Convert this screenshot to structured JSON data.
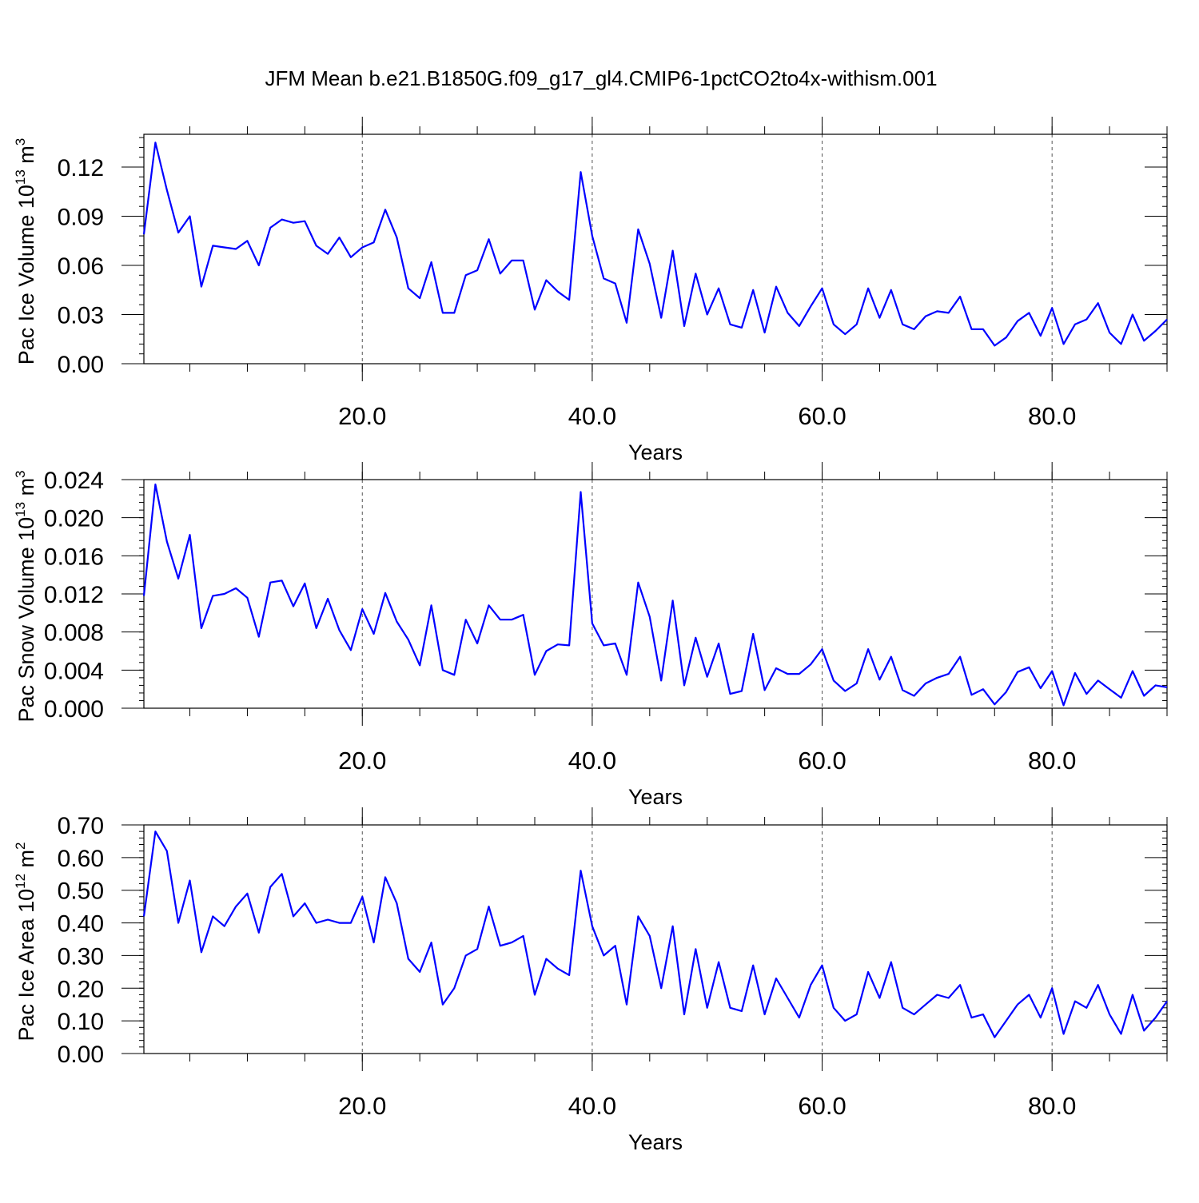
{
  "title": "JFM Mean b.e21.B1850G.f09_g17_gl4.CMIP6-1pctCO2to4x-withism.001",
  "colors": {
    "line": "#0000ff",
    "axis": "#000000",
    "grid": "#555555"
  },
  "chart_data": [
    {
      "type": "line",
      "title": "JFM Mean b.e21.B1850G.f09_g17_gl4.CMIP6-1pctCO2to4x-withism.001",
      "xlabel": "Years",
      "ylabel": {
        "text": "Pac Ice Volume 10",
        "sup": "13",
        "unit": " m",
        "unit_sup": "3"
      },
      "xlim": [
        1,
        90
      ],
      "ylim": [
        0,
        0.14
      ],
      "xticks": [
        20,
        40,
        60,
        80
      ],
      "xtick_labels": [
        "20.0",
        "40.0",
        "60.0",
        "80.0"
      ],
      "yticks": [
        0,
        0.03,
        0.06,
        0.09,
        0.12
      ],
      "ytick_labels": [
        "0.00",
        "0.03",
        "0.06",
        "0.09",
        "0.12"
      ],
      "grid": "vertical dashed at major x ticks",
      "x": [
        1,
        2,
        3,
        4,
        5,
        6,
        7,
        8,
        9,
        10,
        11,
        12,
        13,
        14,
        15,
        16,
        17,
        18,
        19,
        20,
        21,
        22,
        23,
        24,
        25,
        26,
        27,
        28,
        29,
        30,
        31,
        32,
        33,
        34,
        35,
        36,
        37,
        38,
        39,
        40,
        41,
        42,
        43,
        44,
        45,
        46,
        47,
        48,
        49,
        50,
        51,
        52,
        53,
        54,
        55,
        56,
        57,
        58,
        59,
        60,
        61,
        62,
        63,
        64,
        65,
        66,
        67,
        68,
        69,
        70,
        71,
        72,
        73,
        74,
        75,
        76,
        77,
        78,
        79,
        80,
        81,
        82,
        83,
        84,
        85,
        86,
        87,
        88,
        89,
        90
      ],
      "series": [
        {
          "values": [
            0.079,
            0.135,
            0.106,
            0.08,
            0.09,
            0.047,
            0.072,
            0.071,
            0.07,
            0.075,
            0.06,
            0.083,
            0.088,
            0.086,
            0.087,
            0.072,
            0.067,
            0.077,
            0.065,
            0.071,
            0.074,
            0.094,
            0.077,
            0.046,
            0.04,
            0.062,
            0.031,
            0.031,
            0.054,
            0.057,
            0.076,
            0.055,
            0.063,
            0.063,
            0.033,
            0.051,
            0.044,
            0.039,
            0.117,
            0.078,
            0.052,
            0.049,
            0.025,
            0.082,
            0.061,
            0.028,
            0.069,
            0.023,
            0.055,
            0.03,
            0.046,
            0.024,
            0.022,
            0.045,
            0.019,
            0.047,
            0.031,
            0.023,
            0.035,
            0.046,
            0.024,
            0.018,
            0.024,
            0.046,
            0.028,
            0.045,
            0.024,
            0.021,
            0.029,
            0.032,
            0.031,
            0.041,
            0.021,
            0.021,
            0.011,
            0.016,
            0.026,
            0.031,
            0.017,
            0.034,
            0.012,
            0.024,
            0.027,
            0.037,
            0.019,
            0.012,
            0.03,
            0.014,
            0.02,
            0.027
          ]
        }
      ]
    },
    {
      "type": "line",
      "xlabel": "Years",
      "ylabel": {
        "text": "Pac Snow Volume 10",
        "sup": "13",
        "unit": " m",
        "unit_sup": "3"
      },
      "xlim": [
        1,
        90
      ],
      "ylim": [
        0,
        0.024
      ],
      "xticks": [
        20,
        40,
        60,
        80
      ],
      "xtick_labels": [
        "20.0",
        "40.0",
        "60.0",
        "80.0"
      ],
      "yticks": [
        0,
        0.004,
        0.008,
        0.012,
        0.016,
        0.02,
        0.024
      ],
      "ytick_labels": [
        "0.000",
        "0.004",
        "0.008",
        "0.012",
        "0.016",
        "0.020",
        "0.024"
      ],
      "grid": "vertical dashed at major x ticks",
      "x": [
        1,
        2,
        3,
        4,
        5,
        6,
        7,
        8,
        9,
        10,
        11,
        12,
        13,
        14,
        15,
        16,
        17,
        18,
        19,
        20,
        21,
        22,
        23,
        24,
        25,
        26,
        27,
        28,
        29,
        30,
        31,
        32,
        33,
        34,
        35,
        36,
        37,
        38,
        39,
        40,
        41,
        42,
        43,
        44,
        45,
        46,
        47,
        48,
        49,
        50,
        51,
        52,
        53,
        54,
        55,
        56,
        57,
        58,
        59,
        60,
        61,
        62,
        63,
        64,
        65,
        66,
        67,
        68,
        69,
        70,
        71,
        72,
        73,
        74,
        75,
        76,
        77,
        78,
        79,
        80,
        81,
        82,
        83,
        84,
        85,
        86,
        87,
        88,
        89,
        90
      ],
      "series": [
        {
          "values": [
            0.0118,
            0.0235,
            0.0175,
            0.0136,
            0.0182,
            0.0084,
            0.0118,
            0.012,
            0.0126,
            0.0116,
            0.0075,
            0.0132,
            0.0134,
            0.0107,
            0.0131,
            0.0084,
            0.0115,
            0.0082,
            0.0061,
            0.0104,
            0.0078,
            0.0121,
            0.0091,
            0.0072,
            0.0045,
            0.0108,
            0.004,
            0.0035,
            0.0093,
            0.0068,
            0.0108,
            0.0093,
            0.0093,
            0.0098,
            0.0035,
            0.006,
            0.0067,
            0.0066,
            0.0227,
            0.0089,
            0.0066,
            0.0068,
            0.0035,
            0.0132,
            0.0096,
            0.0029,
            0.0113,
            0.0024,
            0.0074,
            0.0033,
            0.0068,
            0.0015,
            0.0018,
            0.0078,
            0.0019,
            0.0042,
            0.0036,
            0.0036,
            0.0046,
            0.0062,
            0.0029,
            0.0018,
            0.0026,
            0.0062,
            0.003,
            0.0054,
            0.0019,
            0.0013,
            0.0026,
            0.0032,
            0.0036,
            0.0054,
            0.0014,
            0.002,
            0.0004,
            0.0017,
            0.0038,
            0.0043,
            0.0021,
            0.0039,
            0.0003,
            0.0037,
            0.0015,
            0.0029,
            0.002,
            0.0011,
            0.0039,
            0.0013,
            0.0024,
            0.0022
          ]
        }
      ]
    },
    {
      "type": "line",
      "xlabel": "Years",
      "ylabel": {
        "text": "Pac Ice Area 10",
        "sup": "12",
        "unit": " m",
        "unit_sup": "2"
      },
      "xlim": [
        1,
        90
      ],
      "ylim": [
        0,
        0.7
      ],
      "xticks": [
        20,
        40,
        60,
        80
      ],
      "xtick_labels": [
        "20.0",
        "40.0",
        "60.0",
        "80.0"
      ],
      "yticks": [
        0,
        0.1,
        0.2,
        0.3,
        0.4,
        0.5,
        0.6,
        0.7
      ],
      "ytick_labels": [
        "0.00",
        "0.10",
        "0.20",
        "0.30",
        "0.40",
        "0.50",
        "0.60",
        "0.70"
      ],
      "grid": "vertical dashed at major x ticks",
      "x": [
        1,
        2,
        3,
        4,
        5,
        6,
        7,
        8,
        9,
        10,
        11,
        12,
        13,
        14,
        15,
        16,
        17,
        18,
        19,
        20,
        21,
        22,
        23,
        24,
        25,
        26,
        27,
        28,
        29,
        30,
        31,
        32,
        33,
        34,
        35,
        36,
        37,
        38,
        39,
        40,
        41,
        42,
        43,
        44,
        45,
        46,
        47,
        48,
        49,
        50,
        51,
        52,
        53,
        54,
        55,
        56,
        57,
        58,
        59,
        60,
        61,
        62,
        63,
        64,
        65,
        66,
        67,
        68,
        69,
        70,
        71,
        72,
        73,
        74,
        75,
        76,
        77,
        78,
        79,
        80,
        81,
        82,
        83,
        84,
        85,
        86,
        87,
        88,
        89,
        90
      ],
      "series": [
        {
          "values": [
            0.42,
            0.68,
            0.62,
            0.4,
            0.53,
            0.31,
            0.42,
            0.39,
            0.45,
            0.49,
            0.37,
            0.51,
            0.55,
            0.42,
            0.46,
            0.4,
            0.41,
            0.4,
            0.4,
            0.48,
            0.34,
            0.54,
            0.46,
            0.29,
            0.25,
            0.34,
            0.15,
            0.2,
            0.3,
            0.32,
            0.45,
            0.33,
            0.34,
            0.36,
            0.18,
            0.29,
            0.26,
            0.24,
            0.56,
            0.39,
            0.3,
            0.33,
            0.15,
            0.42,
            0.36,
            0.2,
            0.39,
            0.12,
            0.32,
            0.14,
            0.28,
            0.14,
            0.13,
            0.27,
            0.12,
            0.23,
            0.17,
            0.11,
            0.21,
            0.27,
            0.14,
            0.1,
            0.12,
            0.25,
            0.17,
            0.28,
            0.14,
            0.12,
            0.15,
            0.18,
            0.17,
            0.21,
            0.11,
            0.12,
            0.05,
            0.1,
            0.15,
            0.18,
            0.11,
            0.2,
            0.06,
            0.16,
            0.14,
            0.21,
            0.12,
            0.06,
            0.18,
            0.07,
            0.11,
            0.16
          ]
        }
      ]
    }
  ]
}
